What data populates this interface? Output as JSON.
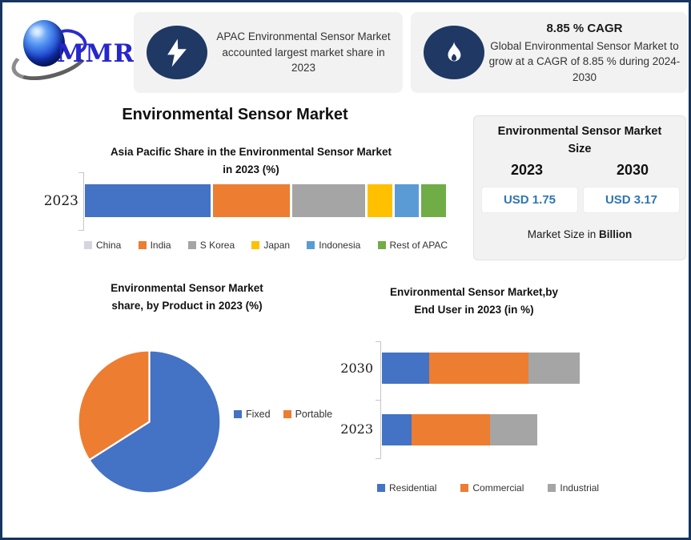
{
  "brand": {
    "logo_text": "MMR"
  },
  "colors": {
    "frame_navy": "#16355f",
    "badge_navy": "#1f3864",
    "box_bg": "#f2f2f2",
    "value_blue": "#2e75b6",
    "series_blue": "#4472c4",
    "series_orange": "#ed7d31",
    "series_gray": "#a5a5a5",
    "series_yellow": "#ffc000",
    "series_lightblue": "#5b9bd5",
    "series_green": "#70ad47"
  },
  "highlights": [
    {
      "icon": "lightning-icon",
      "text": "APAC Environmental Sensor Market accounted largest market share in 2023"
    },
    {
      "icon": "flame-icon",
      "title": "8.85 % CAGR",
      "text": "Global Environmental Sensor Market to grow at a CAGR of 8.85 % during 2024-2030"
    }
  ],
  "main_title": "Environmental Sensor Market",
  "market_size_panel": {
    "title_line1": "Environmental Sensor Market",
    "title_line2": "Size",
    "year1": "2023",
    "year2": "2030",
    "value1": "USD 1.75",
    "value2": "USD 3.17",
    "footnote_text": "Market Size in ",
    "footnote_bold": "Billion"
  },
  "chart_data": [
    {
      "type": "bar",
      "orientation": "horizontal-stacked",
      "title": "Asia Pacific Share in the Environmental Sensor Market in 2023 (%)",
      "title_line1": "Asia Pacific Share in the Environmental Sensor Market",
      "title_line2": "in 2023 (%)",
      "categories": [
        "2023"
      ],
      "series": [
        {
          "name": "China",
          "color": "#4472c4",
          "legend_color": "#d5d5e2",
          "values": [
            36
          ]
        },
        {
          "name": "India",
          "color": "#ed7d31",
          "values": [
            22
          ]
        },
        {
          "name": "S Korea",
          "color": "#a5a5a5",
          "values": [
            21
          ]
        },
        {
          "name": "Japan",
          "color": "#ffc000",
          "values": [
            7
          ]
        },
        {
          "name": "Indonesia",
          "color": "#5b9bd5",
          "values": [
            7
          ]
        },
        {
          "name": "Rest of APAC",
          "color": "#70ad47",
          "values": [
            7
          ]
        }
      ],
      "legend_position": "bottom",
      "grid": false
    },
    {
      "type": "pie",
      "title": "Environmental Sensor Market share, by Product in 2023 (%)",
      "title_line1": "Environmental Sensor Market",
      "title_line2": "share, by Product in 2023  (%)",
      "labels": [
        "Fixed",
        "Portable"
      ],
      "values": [
        66,
        34
      ],
      "colors": [
        "#4472c4",
        "#ed7d31"
      ],
      "legend_position": "right",
      "start_angle_deg": 0
    },
    {
      "type": "bar",
      "orientation": "horizontal-stacked",
      "title": "Environmental Sensor Market,by End User in 2023 (in %)",
      "title_line1": "Environmental Sensor Market,by",
      "title_line2": "End User in 2023 (in %)",
      "categories": [
        "2030",
        "2023"
      ],
      "series": [
        {
          "name": "Residential",
          "color": "#4472c4",
          "values": [
            21,
            13
          ]
        },
        {
          "name": "Commercial",
          "color": "#ed7d31",
          "values": [
            44,
            35
          ]
        },
        {
          "name": "Industrial",
          "color": "#a5a5a5",
          "values": [
            23,
            21
          ]
        }
      ],
      "values_note": "segment widths as % of plot width; 2030 total bar longer than 2023",
      "legend_position": "bottom",
      "grid": false
    }
  ]
}
